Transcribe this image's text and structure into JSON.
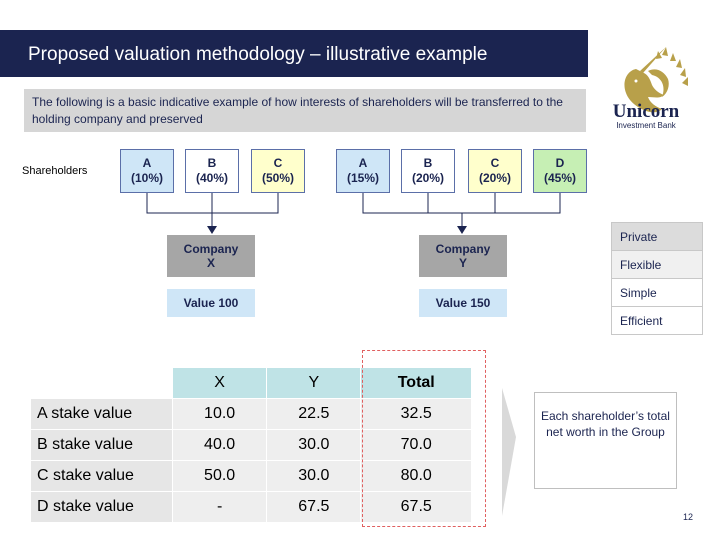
{
  "title": "Proposed valuation methodology – illustrative example",
  "intro": "The following is a basic indicative example of how interests of shareholders will be transferred to the holding company and preserved",
  "logo": {
    "name": "Unicorn",
    "subtitle": "Investment Bank",
    "icon": "unicorn-head-icon",
    "color": "#b8a04a"
  },
  "shareholders_label": "Shareholders",
  "group_x": {
    "shareholders": [
      {
        "name": "A",
        "stake": "(10%)",
        "color": "#cfe6f7"
      },
      {
        "name": "B",
        "stake": "(40%)",
        "color": "#ffffff"
      },
      {
        "name": "C",
        "stake": "(50%)",
        "color": "#ffffcc"
      }
    ],
    "company": [
      "Company",
      "X"
    ],
    "value": "Value 100"
  },
  "group_y": {
    "shareholders": [
      {
        "name": "A",
        "stake": "(15%)",
        "color": "#cfe6f7"
      },
      {
        "name": "B",
        "stake": "(20%)",
        "color": "#ffffff"
      },
      {
        "name": "C",
        "stake": "(20%)",
        "color": "#ffffcc"
      },
      {
        "name": "D",
        "stake": "(45%)",
        "color": "#c6efb4"
      }
    ],
    "company": [
      "Company",
      "Y"
    ],
    "value": "Value 150"
  },
  "attributes": [
    {
      "label": "Private",
      "color": "#dcdcdc"
    },
    {
      "label": "Flexible",
      "color": "#f0f0f0"
    },
    {
      "label": "Simple",
      "color": "#ffffff"
    },
    {
      "label": "Efficient",
      "color": "#ffffff"
    }
  ],
  "valuation_table": {
    "headers": [
      "",
      "X",
      "Y",
      "Total"
    ],
    "rows": [
      [
        "A stake value",
        "10.0",
        "22.5",
        "32.5"
      ],
      [
        "B stake value",
        "40.0",
        "30.0",
        "70.0"
      ],
      [
        "C stake value",
        "50.0",
        "30.0",
        "80.0"
      ],
      [
        "D stake value",
        "-",
        "67.5",
        "67.5"
      ]
    ]
  },
  "summary": "Each shareholder’s total net worth in the Group",
  "page_number": "12",
  "colors": {
    "navy": "#1b2450",
    "connector": "#1b2450"
  }
}
